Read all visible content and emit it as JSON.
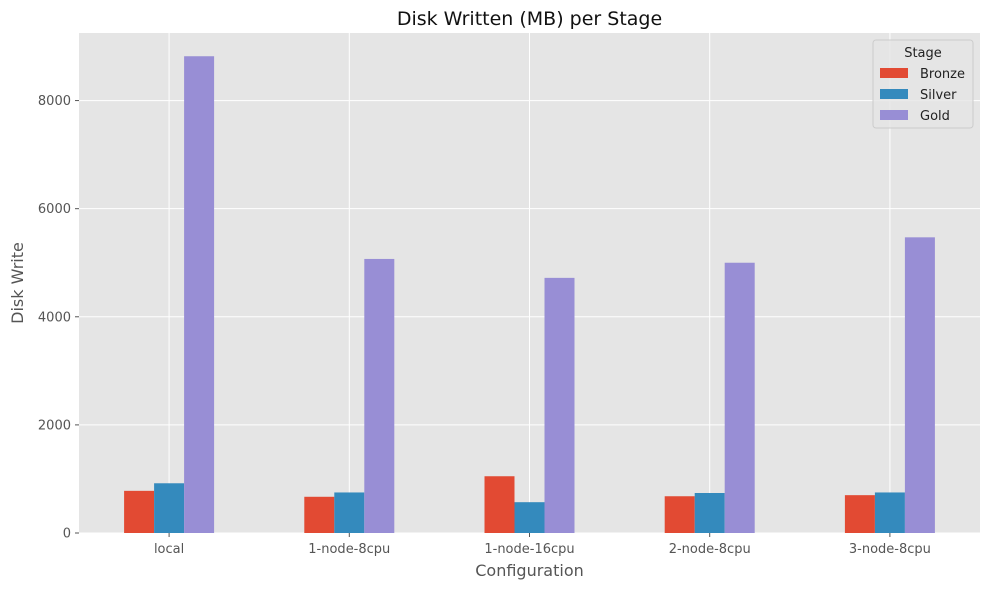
{
  "chart_data": {
    "type": "bar",
    "title": "Disk Written (MB) per Stage",
    "xlabel": "Configuration",
    "ylabel": "Disk Write",
    "categories": [
      "local",
      "1-node-8cpu",
      "1-node-16cpu",
      "2-node-8cpu",
      "3-node-8cpu"
    ],
    "series": [
      {
        "name": "Bronze",
        "color": "#E24A33",
        "values": [
          780,
          670,
          1050,
          680,
          700
        ]
      },
      {
        "name": "Silver",
        "color": "#348ABD",
        "values": [
          920,
          750,
          570,
          740,
          750
        ]
      },
      {
        "name": "Gold",
        "color": "#988ED5",
        "values": [
          8820,
          5070,
          4720,
          5000,
          5470
        ]
      }
    ],
    "ylim": [
      0,
      9250
    ],
    "yticks": [
      0,
      2000,
      4000,
      6000,
      8000
    ],
    "grid": true,
    "legend": {
      "title": "Stage",
      "placement": "top-right"
    }
  }
}
